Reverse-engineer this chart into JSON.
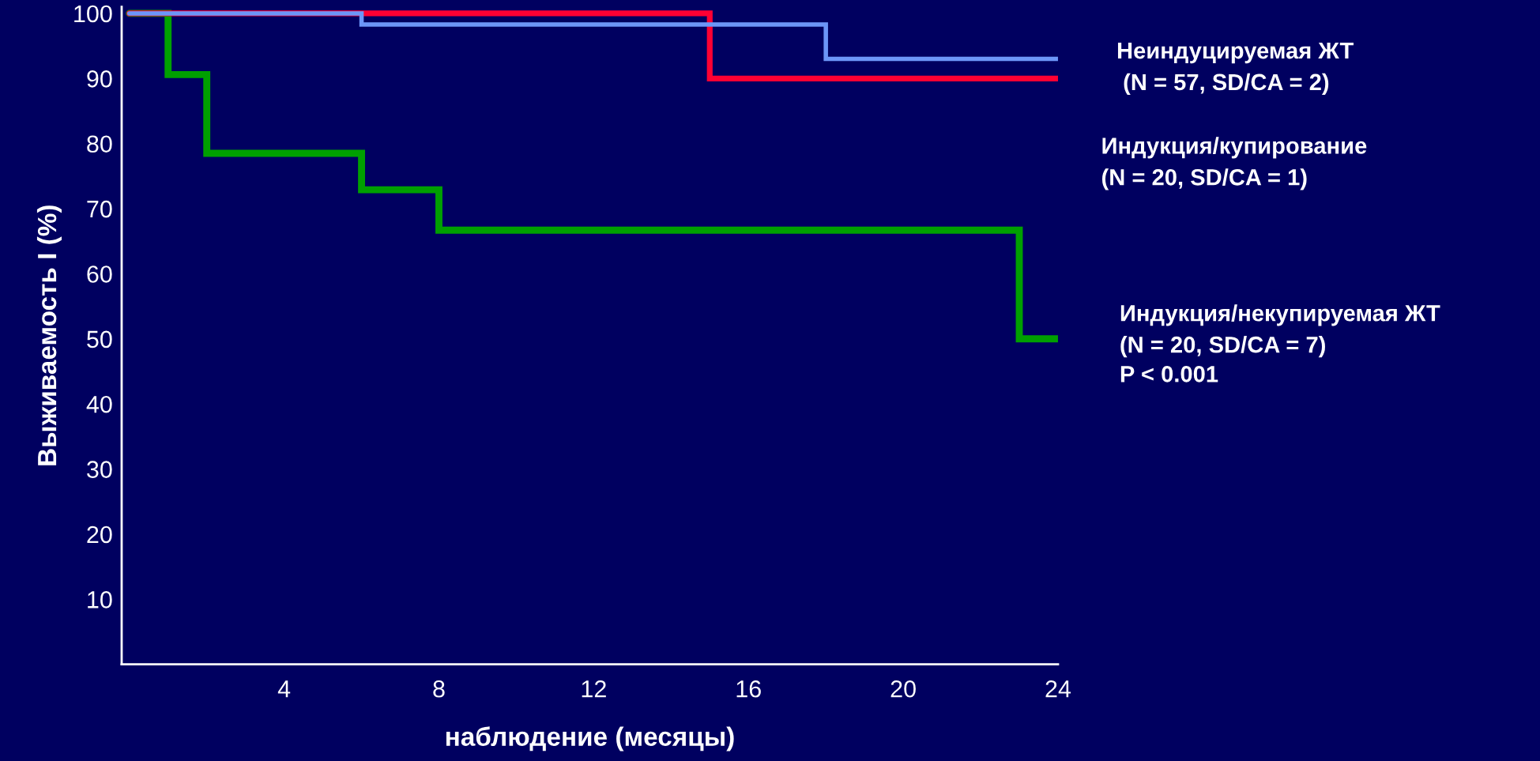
{
  "chart_data": {
    "type": "step",
    "ylabel": "Выживаемость I (%)",
    "xlabel": "наблюдение (месяцы)",
    "series": [
      {
        "name": "Неиндуцируемая ЖТ\n (N = 57, SD/CA = 2)",
        "color": "#6c96f8",
        "x": [
          0,
          6,
          18,
          24
        ],
        "values": [
          100,
          98.3,
          93,
          93
        ]
      },
      {
        "name": "Индукция/купирование\n(N = 20, SD/CA = 1)",
        "color": "#ff0033",
        "x": [
          0,
          15,
          24
        ],
        "values": [
          100,
          90,
          90
        ]
      },
      {
        "name": "Индукция/некупируемая ЖТ\n(N = 20, SD/CA = 7)",
        "color": "#00a000",
        "x": [
          0,
          1,
          2,
          6,
          8,
          23,
          24
        ],
        "values": [
          100,
          90.6,
          78.5,
          72.9,
          66.7,
          50,
          50
        ]
      }
    ],
    "annotations": [
      "P < 0.001"
    ],
    "xlim": [
      -0.2,
      24
    ],
    "xticks": [
      4,
      8,
      12,
      16,
      20,
      24
    ],
    "ylim": [
      0,
      101
    ],
    "yticks": [
      10,
      20,
      30,
      40,
      50,
      60,
      70,
      80,
      90,
      100
    ],
    "grid": false,
    "legend": false,
    "line_style": "solid",
    "marker": "none"
  }
}
